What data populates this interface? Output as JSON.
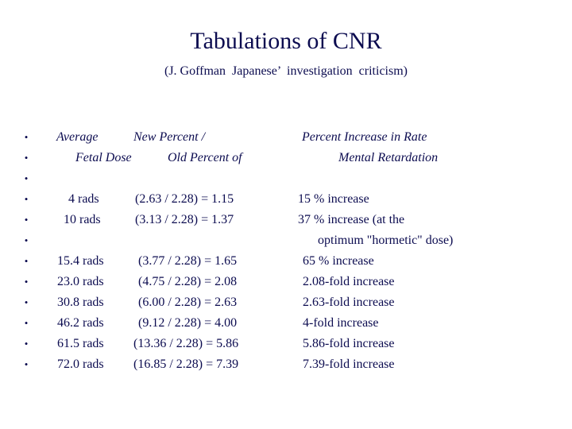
{
  "title": "Tabulations of CNR",
  "subtitle": "(J. Goffman  Japanese’  investigation  criticism)",
  "bullet_char": "•",
  "header": {
    "line1": {
      "col1": "Average",
      "col2": "New Percent /",
      "col3": "Percent Increase in Rate"
    },
    "line2": {
      "col1": "Fetal Dose",
      "col2": "Old Percent of",
      "col3": "Mental Retardation"
    }
  },
  "rows": [
    {
      "dose": "4 rads",
      "ratio": "(2.63 / 2.28) = 1.15",
      "increase": "15 % increase"
    },
    {
      "dose": "10 rads",
      "ratio": "(3.13 / 2.28) = 1.37",
      "increase": "37 % increase (at the"
    },
    {
      "dose": "",
      "ratio": "",
      "increase": "optimum \"hormetic\" dose)"
    },
    {
      "dose": "15.4 rads",
      "ratio": "(3.77 / 2.28) = 1.65",
      "increase": "65 % increase"
    },
    {
      "dose": "23.0 rads",
      "ratio": "(4.75 / 2.28) = 2.08",
      "increase": "2.08-fold increase"
    },
    {
      "dose": "30.8 rads",
      "ratio": "(6.00 / 2.28) = 2.63",
      "increase": "2.63-fold increase"
    },
    {
      "dose": "46.2 rads",
      "ratio": "(9.12 / 2.28) = 4.00",
      "increase": "4-fold increase"
    },
    {
      "dose": "61.5 rads",
      "ratio": "(13.36 / 2.28) = 5.86",
      "increase": "5.86-fold increase"
    },
    {
      "dose": "72.0 rads",
      "ratio": "(16.85 / 2.28) = 7.39",
      "increase": "7.39-fold increase"
    }
  ]
}
